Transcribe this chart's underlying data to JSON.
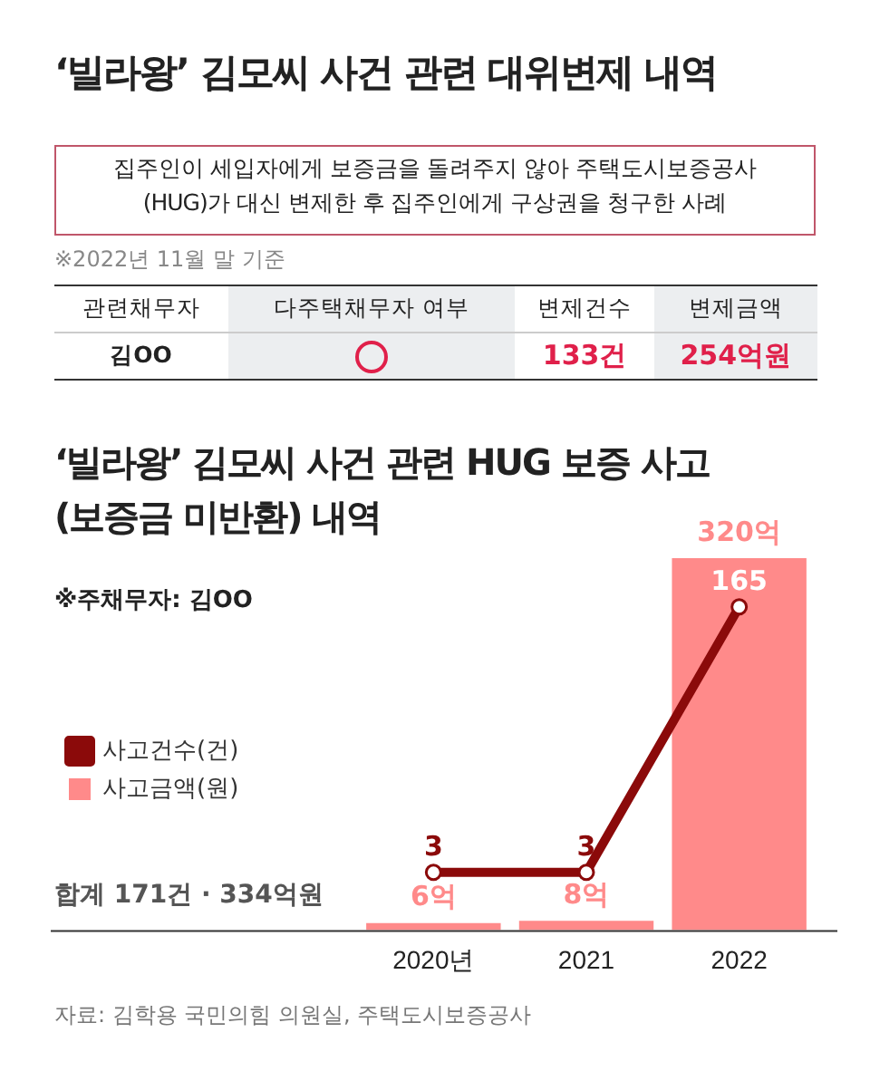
{
  "chart_data": {
    "type": "bar",
    "title": "‘빌라왕’ 김모씨 사건 관련 대위변제 내역",
    "subtitle": "‘빌라왕’ 김모씨 사건 관련 HUG 보증 사고 (보증금 미반환) 내역",
    "annotations": [
      "집주인이 세입자에게 보증금을 돌려주지 않아 주택도시보증공사\n(HUG)가 대신 변제한 후 집주인에게 구상권을 청구한 사례",
      "※2022년 11월 말 기준",
      "관련채무자",
      "다주택채무자 여부",
      "변제건수",
      "변제금액",
      "김OO",
      "133건",
      "254억원",
      "※주채무자: 김OO",
      "합계 171건 · 334억원",
      "자료: 김학용 국민의힘 의원실, 주택도시보증공사"
    ],
    "categories": [
      "2020년",
      "2021",
      "2022"
    ],
    "series": [
      {
        "name": "사고건수(건)",
        "type": "line",
        "axis": "y2",
        "color": "#8b0a0a",
        "values": [
          3,
          3,
          165
        ],
        "value_labels": [
          "3",
          "3",
          "165"
        ]
      },
      {
        "name": "사고금액(원)",
        "color": "#ff8a8a",
        "values": [
          6,
          8,
          320
        ],
        "value_labels": [
          "6억",
          "8억",
          "320억"
        ]
      }
    ],
    "marker": "circle",
    "line_style": "solid",
    "legend": "left",
    "grid": false,
    "tick_labels": "x"
  }
}
